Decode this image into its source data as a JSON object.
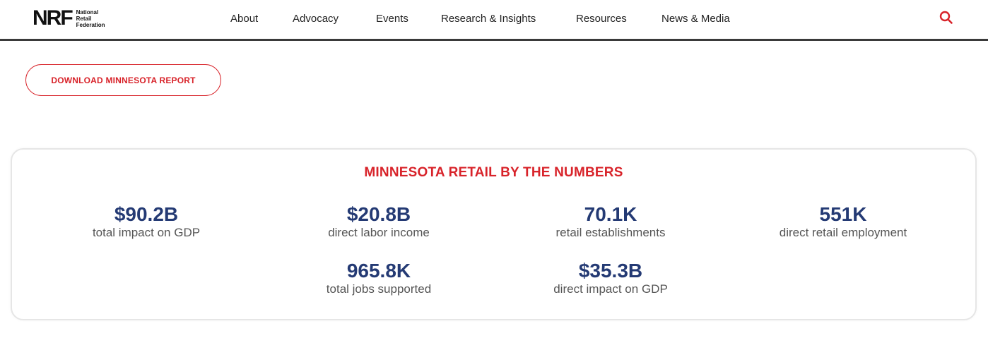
{
  "header": {
    "logo_mark": "NRF",
    "logo_lines": [
      "National",
      "Retail",
      "Federation"
    ],
    "nav": [
      {
        "label": "About"
      },
      {
        "label": "Advocacy"
      },
      {
        "label": "Events"
      },
      {
        "label": "Research & Insights"
      },
      {
        "label": "Resources"
      },
      {
        "label": "News & Media"
      }
    ],
    "search_icon": "search-icon",
    "accent_color": "#d8232a"
  },
  "download_button": {
    "label": "DOWNLOAD MINNESOTA REPORT"
  },
  "stats_card": {
    "title": "MINNESOTA RETAIL BY THE NUMBERS",
    "value_color": "#243a74",
    "stats": [
      {
        "value": "$90.2B",
        "label": "total impact on GDP"
      },
      {
        "value": "$20.8B",
        "label": "direct labor income"
      },
      {
        "value": "70.1K",
        "label": "retail establishments"
      },
      {
        "value": "551K",
        "label": "direct retail employment"
      },
      {
        "value": "965.8K",
        "label": "total jobs supported"
      },
      {
        "value": "$35.3B",
        "label": "direct impact on GDP"
      }
    ]
  }
}
